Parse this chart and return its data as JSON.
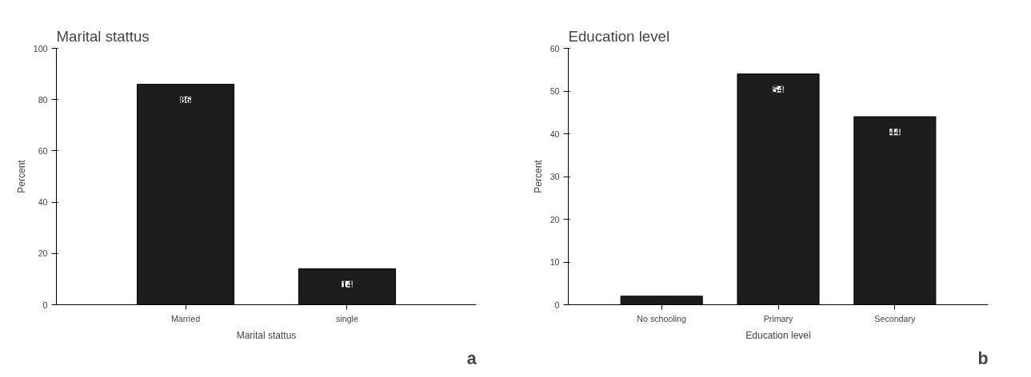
{
  "chart_data": [
    {
      "type": "bar",
      "title": "Marital stattus",
      "xlabel": "Marital stattus",
      "ylabel": "Percent",
      "categories": [
        "Married",
        "single"
      ],
      "values": [
        86,
        14
      ],
      "color": "#1c1c1c",
      "ylim": [
        0,
        100
      ],
      "yticks": [
        0,
        20,
        40,
        60,
        80,
        100
      ],
      "data_labels": true,
      "grid": false,
      "annotations": [
        "a"
      ]
    },
    {
      "type": "bar",
      "title": "Education level",
      "xlabel": "Education level",
      "ylabel": "Percent",
      "categories": [
        "No schooling",
        "Primary",
        "Secondary"
      ],
      "values": [
        2,
        54,
        44
      ],
      "value_labels": [
        null,
        "54",
        "44"
      ],
      "color": "#1c1c1c",
      "ylim": [
        0,
        60
      ],
      "yticks": [
        0,
        10,
        20,
        30,
        40,
        50,
        60
      ],
      "grid": false,
      "annotations": [
        "b"
      ]
    }
  ]
}
